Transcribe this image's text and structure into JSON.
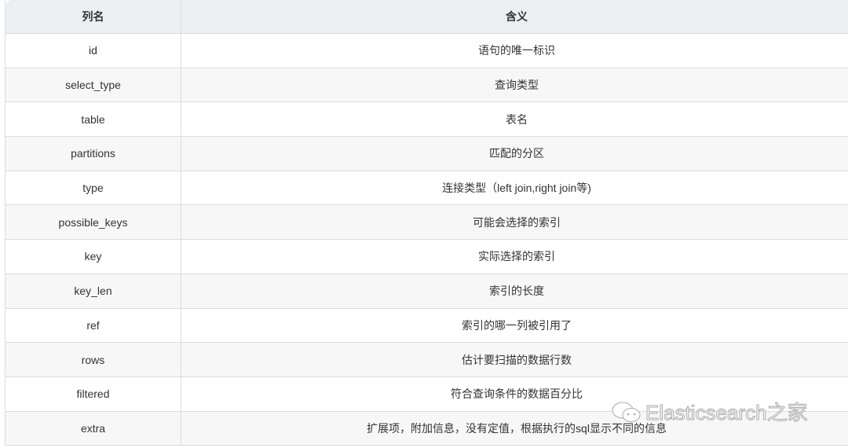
{
  "table": {
    "headers": [
      "列名",
      "含义"
    ],
    "rows": [
      [
        "id",
        "语句的唯一标识"
      ],
      [
        "select_type",
        "查询类型"
      ],
      [
        "table",
        "表名"
      ],
      [
        "partitions",
        "匹配的分区"
      ],
      [
        "type",
        "连接类型（left join,right join等)"
      ],
      [
        "possible_keys",
        "可能会选择的索引"
      ],
      [
        "key",
        "实际选择的索引"
      ],
      [
        "key_len",
        "索引的长度"
      ],
      [
        "ref",
        "索引的哪一列被引用了"
      ],
      [
        "rows",
        "估计要扫描的数据行数"
      ],
      [
        "filtered",
        "符合查询条件的数据百分比"
      ],
      [
        "extra",
        "扩展项，附加信息，没有定值，根据执行的sql显示不同的信息"
      ]
    ]
  },
  "watermark": {
    "text": "Elasticsearch之家",
    "icon": "wechat-icon"
  }
}
